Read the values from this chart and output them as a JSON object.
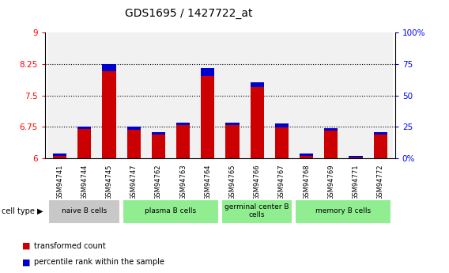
{
  "title": "GDS1695 / 1427722_at",
  "samples": [
    "GSM94741",
    "GSM94744",
    "GSM94745",
    "GSM94747",
    "GSM94762",
    "GSM94763",
    "GSM94764",
    "GSM94765",
    "GSM94766",
    "GSM94767",
    "GSM94768",
    "GSM94769",
    "GSM94771",
    "GSM94772"
  ],
  "red_values": [
    6.12,
    6.76,
    8.26,
    6.75,
    6.62,
    6.85,
    8.15,
    6.85,
    7.82,
    6.83,
    6.12,
    6.72,
    6.05,
    6.62
  ],
  "blue_pct": [
    2,
    2,
    6,
    2,
    2,
    2,
    6,
    2,
    4,
    3,
    2,
    2,
    1,
    2
  ],
  "ylim_left": [
    6,
    9
  ],
  "ylim_right": [
    0,
    100
  ],
  "yticks_left": [
    6,
    6.75,
    7.5,
    8.25,
    9
  ],
  "yticks_right": [
    0,
    25,
    50,
    75,
    100
  ],
  "ytick_labels_left": [
    "6",
    "6.75",
    "7.5",
    "8.25",
    "9"
  ],
  "ytick_labels_right": [
    "0%",
    "25",
    "50",
    "75",
    "100%"
  ],
  "red_color": "#cc0000",
  "blue_color": "#0000cc",
  "bar_width": 0.55,
  "baseline": 6.0,
  "legend_red": "transformed count",
  "legend_blue": "percentile rank within the sample",
  "cell_type_label": "cell type",
  "groups": [
    {
      "label": "naive B cells",
      "start": 0,
      "end": 2,
      "color": "#c8c8c8"
    },
    {
      "label": "plasma B cells",
      "start": 3,
      "end": 6,
      "color": "#90ee90"
    },
    {
      "label": "germinal center B\ncells",
      "start": 7,
      "end": 9,
      "color": "#90ee90"
    },
    {
      "label": "memory B cells",
      "start": 10,
      "end": 13,
      "color": "#90ee90"
    }
  ]
}
